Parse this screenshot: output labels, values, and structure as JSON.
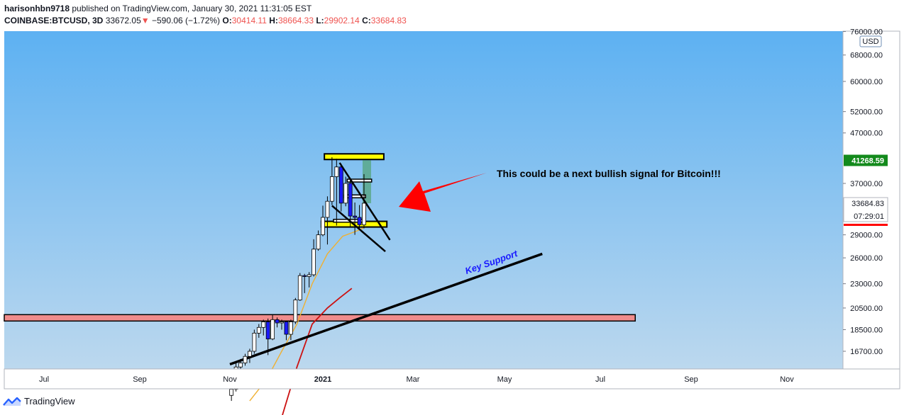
{
  "header": {
    "author": "harisonhbn9718",
    "published_text": "published on TradingView.com, January 30, 2021 11:31:05 EST",
    "symbol": "COINBASE:BTCUSD, 3D",
    "last": "33672.05",
    "change_arrow": "▼",
    "change": "−590.06 (−1.72%)",
    "o_label": "O:",
    "o_value": "30414.11",
    "h_label": "H:",
    "h_value": "38664.33",
    "l_label": "L:",
    "l_value": "29902.14",
    "c_label": "C:",
    "c_value": "33684.83"
  },
  "price_axis": {
    "currency": "USD",
    "current_price_label": "41268.59",
    "last_price_label": "33684.83",
    "countdown": "07:29:01"
  },
  "annotations": {
    "signal_text": "This could be a next bullish signal for Bitcoin!!!",
    "support_text": "Key Support"
  },
  "footer": {
    "brand": "TradingView"
  },
  "colors": {
    "bg_top": "#5db1f2",
    "bg_bottom": "#bcd8ee",
    "zone_yellow": "#ffff00",
    "zone_red": "#f08c8c",
    "arrow_red": "#ff0000",
    "candle_up": "#ffffff",
    "candle_down": "#1a1aff",
    "ma_orange": "#f0b030",
    "ma_red": "#cc1111",
    "support_text_color": "#1a1aff",
    "current_price_bg": "#138a1c"
  },
  "chart_data": {
    "type": "candlestick",
    "symbol": "COINBASE:BTCUSD",
    "interval": "3D",
    "y_axis": {
      "ticks": [
        "76000.00",
        "68000.00",
        "60000.00",
        "52000.00",
        "47000.00",
        "37000.00",
        "29000.00",
        "26000.00",
        "23000.00",
        "20500.00",
        "18500.00",
        "16700.00"
      ],
      "scale": "log"
    },
    "x_axis": {
      "ticks": [
        "Jul",
        "Sep",
        "Nov",
        "2021",
        "Mar",
        "May",
        "Jul",
        "Sep",
        "Nov"
      ]
    },
    "candles": [
      {
        "t": "2020-11-02",
        "o": 13550,
        "h": 14100,
        "l": 13200,
        "c": 13950
      },
      {
        "t": "2020-11-05",
        "o": 13950,
        "h": 15800,
        "l": 13800,
        "c": 15500
      },
      {
        "t": "2020-11-08",
        "o": 15500,
        "h": 16100,
        "l": 15000,
        "c": 15800
      },
      {
        "t": "2020-11-11",
        "o": 15800,
        "h": 16500,
        "l": 15600,
        "c": 16300
      },
      {
        "t": "2020-11-14",
        "o": 16300,
        "h": 16900,
        "l": 15800,
        "c": 16700
      },
      {
        "t": "2020-11-17",
        "o": 16700,
        "h": 18500,
        "l": 16500,
        "c": 18200
      },
      {
        "t": "2020-11-20",
        "o": 18200,
        "h": 19000,
        "l": 17800,
        "c": 18700
      },
      {
        "t": "2020-11-23",
        "o": 18700,
        "h": 19400,
        "l": 18000,
        "c": 19200
      },
      {
        "t": "2020-11-26",
        "o": 19200,
        "h": 19500,
        "l": 16400,
        "c": 17700
      },
      {
        "t": "2020-11-29",
        "o": 17700,
        "h": 19900,
        "l": 17600,
        "c": 19400
      },
      {
        "t": "2020-12-02",
        "o": 19400,
        "h": 19600,
        "l": 18700,
        "c": 19100
      },
      {
        "t": "2020-12-05",
        "o": 19100,
        "h": 19400,
        "l": 18500,
        "c": 19200
      },
      {
        "t": "2020-12-08",
        "o": 19200,
        "h": 19300,
        "l": 17600,
        "c": 18100
      },
      {
        "t": "2020-12-11",
        "o": 18100,
        "h": 19400,
        "l": 17600,
        "c": 19200
      },
      {
        "t": "2020-12-14",
        "o": 19200,
        "h": 21500,
        "l": 19000,
        "c": 21300
      },
      {
        "t": "2020-12-17",
        "o": 21300,
        "h": 24200,
        "l": 21200,
        "c": 23900
      },
      {
        "t": "2020-12-20",
        "o": 23900,
        "h": 24100,
        "l": 22000,
        "c": 23800
      },
      {
        "t": "2020-12-23",
        "o": 23800,
        "h": 24300,
        "l": 22600,
        "c": 24000
      },
      {
        "t": "2020-12-26",
        "o": 24000,
        "h": 28400,
        "l": 23800,
        "c": 27100
      },
      {
        "t": "2020-12-29",
        "o": 27100,
        "h": 29600,
        "l": 26900,
        "c": 29000
      },
      {
        "t": "2021-01-01",
        "o": 29000,
        "h": 33300,
        "l": 28800,
        "c": 31500
      },
      {
        "t": "2021-01-04",
        "o": 31500,
        "h": 34800,
        "l": 27700,
        "c": 34000
      },
      {
        "t": "2021-01-07",
        "o": 34000,
        "h": 41900,
        "l": 33400,
        "c": 38200
      },
      {
        "t": "2021-01-10",
        "o": 38200,
        "h": 41600,
        "l": 30300,
        "c": 40000
      },
      {
        "t": "2021-01-13",
        "o": 40000,
        "h": 40600,
        "l": 32400,
        "c": 33700
      },
      {
        "t": "2021-01-16",
        "o": 33700,
        "h": 38200,
        "l": 33200,
        "c": 37000
      },
      {
        "t": "2021-01-19",
        "o": 37000,
        "h": 38000,
        "l": 30100,
        "c": 31700
      },
      {
        "t": "2021-01-22",
        "o": 31700,
        "h": 33800,
        "l": 29000,
        "c": 31500
      },
      {
        "t": "2021-01-25",
        "o": 31500,
        "h": 33400,
        "l": 29900,
        "c": 30414
      },
      {
        "t": "2021-01-28",
        "o": 30414,
        "h": 38664,
        "l": 29902,
        "c": 33685
      }
    ],
    "moving_averages": [
      {
        "color": "orange",
        "points": [
          [
            "2020-11-14",
            13200
          ],
          [
            "2020-11-25",
            14600
          ],
          [
            "2020-12-05",
            16700
          ],
          [
            "2020-12-15",
            19000
          ],
          [
            "2020-12-25",
            23000
          ],
          [
            "2021-01-04",
            26500
          ],
          [
            "2021-01-14",
            28800
          ],
          [
            "2021-01-24",
            29600
          ],
          [
            "2021-01-28",
            30000
          ]
        ]
      },
      {
        "color": "red",
        "points": [
          [
            "2020-12-05",
            12200
          ],
          [
            "2020-12-15",
            15500
          ],
          [
            "2020-12-25",
            19000
          ],
          [
            "2021-01-04",
            20500
          ],
          [
            "2021-01-12",
            21500
          ],
          [
            "2021-01-20",
            22500
          ]
        ]
      }
    ],
    "horizontal_zones": [
      {
        "color": "yellow",
        "price": 42000,
        "from": "2021-01-02",
        "to": "2021-02-10"
      },
      {
        "color": "yellow",
        "price": 30500,
        "from": "2020-12-31",
        "to": "2021-02-12"
      },
      {
        "color": "red",
        "price": 19600,
        "from": "2020-06-01",
        "to": "2021-07-25"
      }
    ],
    "trendlines": [
      {
        "name": "Key Support",
        "from": [
          "2020-11-01",
          15700
        ],
        "to": [
          "2021-05-25",
          26500
        ]
      }
    ]
  }
}
